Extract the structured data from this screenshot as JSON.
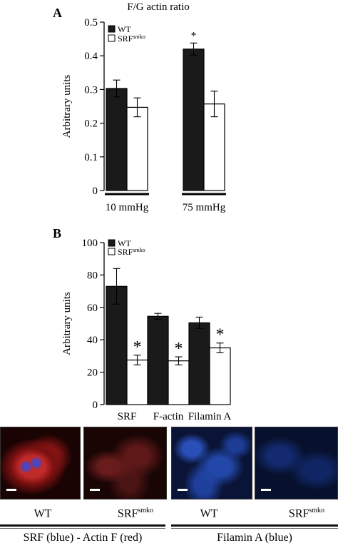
{
  "chart_data": [
    {
      "type": "bar",
      "panel": "A",
      "title": "F/G actin ratio",
      "ylabel": "Arbitrary units",
      "ylim": [
        0,
        0.5
      ],
      "yticks": [
        "0",
        "0.1",
        "0.2",
        "0.3",
        "0.4",
        "0.5"
      ],
      "categories": [
        "10 mmHg",
        "75 mmHg"
      ],
      "series": [
        {
          "name": "WT",
          "sup": "",
          "color": "#1a1a1a",
          "values": [
            0.303,
            0.42
          ],
          "errors": [
            0.025,
            0.018
          ]
        },
        {
          "name": "SRF",
          "sup": "smko",
          "color": "#ffffff",
          "values": [
            0.247,
            0.257
          ],
          "errors": [
            0.028,
            0.038
          ]
        }
      ],
      "annotations": [
        {
          "text": "*",
          "category": 1,
          "series": 0
        }
      ],
      "legend": "top-left"
    },
    {
      "type": "bar",
      "panel": "B",
      "title": "",
      "ylabel": "Arbitrary units",
      "ylim": [
        0,
        100
      ],
      "yticks": [
        "0",
        "20",
        "40",
        "60",
        "80",
        "100"
      ],
      "categories": [
        "SRF",
        "F-actin",
        "Filamin A"
      ],
      "series": [
        {
          "name": "WT",
          "sup": "",
          "color": "#1a1a1a",
          "values": [
            73,
            54.5,
            50.5
          ],
          "errors": [
            11,
            1.8,
            3.5
          ]
        },
        {
          "name": "SRF",
          "sup": "smko",
          "color": "#ffffff",
          "values": [
            27.5,
            27,
            35
          ],
          "errors": [
            3,
            2.5,
            3
          ]
        }
      ],
      "annotations": [
        {
          "text": "*",
          "category": 0,
          "series": 1
        },
        {
          "text": "*",
          "category": 1,
          "series": 1
        },
        {
          "text": "*",
          "category": 2,
          "series": 1
        }
      ],
      "legend": "top-left"
    }
  ],
  "micrographs": {
    "images": [
      {
        "label": "WT",
        "sup": "",
        "stain": "red"
      },
      {
        "label": "SRF",
        "sup": "smko",
        "stain": "red"
      },
      {
        "label": "WT",
        "sup": "",
        "stain": "blue"
      },
      {
        "label": "SRF",
        "sup": "smko",
        "stain": "blue"
      }
    ],
    "group_left": "SRF (blue) - Actin F (red)",
    "group_right": "Filamin A (blue)"
  }
}
